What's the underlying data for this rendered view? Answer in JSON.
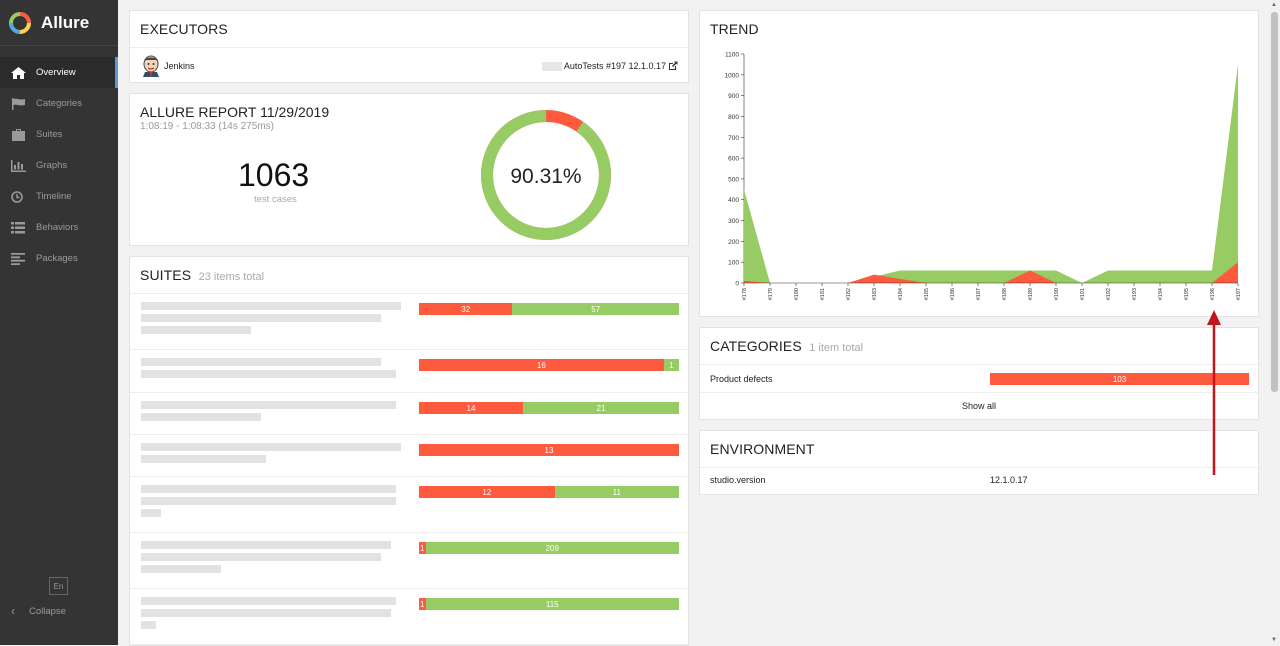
{
  "app": {
    "name": "Allure"
  },
  "sidebar": {
    "items": [
      {
        "label": "Overview",
        "icon": "home-icon",
        "active": true
      },
      {
        "label": "Categories",
        "icon": "flag-icon"
      },
      {
        "label": "Suites",
        "icon": "briefcase-icon"
      },
      {
        "label": "Graphs",
        "icon": "bar-chart-icon"
      },
      {
        "label": "Timeline",
        "icon": "clock-icon"
      },
      {
        "label": "Behaviors",
        "icon": "list-icon"
      },
      {
        "label": "Packages",
        "icon": "align-left-icon"
      }
    ],
    "lang": "En",
    "collapse": "Collapse"
  },
  "executors": {
    "title": "EXECUTORS",
    "name": "Jenkins",
    "build": "AutoTests #197 12.1.0.17"
  },
  "summary": {
    "title": "ALLURE REPORT 11/29/2019",
    "time": "1:08:19 - 1:08:33 (14s 275ms)",
    "count": "1063",
    "count_label": "test cases",
    "percent": "90.31%",
    "pass_fraction": 0.9031
  },
  "suites": {
    "title": "SUITES",
    "subtitle": "23 items total",
    "rows": [
      {
        "failed": 32,
        "passed": 57,
        "failed_label": "32",
        "passed_label": "57"
      },
      {
        "failed": 16,
        "passed": 1,
        "failed_label": "16",
        "passed_label": "1"
      },
      {
        "failed": 14,
        "passed": 21,
        "failed_label": "14",
        "passed_label": "21"
      },
      {
        "failed": 13,
        "passed": 0,
        "failed_label": "13",
        "passed_label": ""
      },
      {
        "failed": 12,
        "passed": 11,
        "failed_label": "12",
        "passed_label": "11"
      },
      {
        "failed": 1,
        "passed": 209,
        "failed_label": "1",
        "passed_label": "209"
      },
      {
        "failed": 1,
        "passed": 115,
        "failed_label": "1",
        "passed_label": "115"
      }
    ]
  },
  "trend": {
    "title": "TREND",
    "chart_data": {
      "type": "area",
      "x": [
        "#178",
        "#179",
        "#180",
        "#181",
        "#182",
        "#183",
        "#184",
        "#185",
        "#186",
        "#187",
        "#188",
        "#189",
        "#190",
        "#191",
        "#192",
        "#193",
        "#194",
        "#195",
        "#196",
        "#197"
      ],
      "yticks": [
        "0",
        "100",
        "200",
        "300",
        "400",
        "500",
        "600",
        "700",
        "800",
        "900",
        "1000",
        "1100"
      ],
      "ylim": [
        0,
        1100
      ],
      "series": [
        {
          "values": [
            450,
            0,
            0,
            0,
            0,
            30,
            60,
            60,
            60,
            60,
            60,
            60,
            60,
            0,
            60,
            60,
            60,
            60,
            60,
            1050
          ]
        },
        {
          "values": [
            10,
            0,
            0,
            0,
            0,
            40,
            20,
            0,
            0,
            0,
            0,
            60,
            0,
            0,
            0,
            0,
            0,
            0,
            0,
            100
          ]
        }
      ],
      "colors": {
        "passed": "#97cc64",
        "failed": "#fd5a3e"
      }
    }
  },
  "categories": {
    "title": "CATEGORIES",
    "subtitle": "1 item total",
    "items": [
      {
        "name": "Product defects",
        "count": "103"
      }
    ],
    "show_all": "Show all"
  },
  "environment": {
    "title": "ENVIRONMENT",
    "rows": [
      {
        "key": "studio.version",
        "value": "12.1.0.17"
      }
    ]
  }
}
